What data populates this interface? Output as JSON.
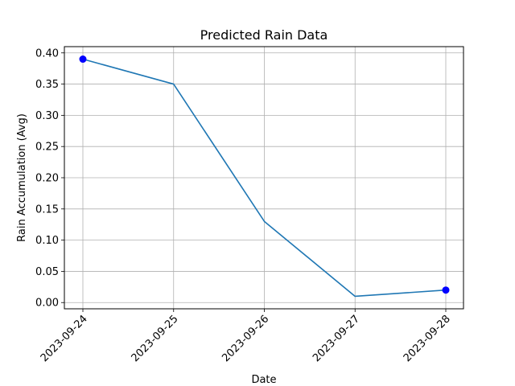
{
  "chart_data": {
    "type": "line",
    "title": "Predicted Rain Data",
    "xlabel": "Date",
    "ylabel": "Rain Accumulation (Avg)",
    "categories": [
      "2023-09-24",
      "2023-09-25",
      "2023-09-26",
      "2023-09-27",
      "2023-09-28"
    ],
    "series": [
      {
        "values": [
          0.39,
          0.35,
          0.13,
          0.01,
          0.02
        ],
        "color": "#1f77b4"
      }
    ],
    "highlighted_points": [
      {
        "x": "2023-09-24",
        "y": 0.39,
        "color": "#0000ff"
      },
      {
        "x": "2023-09-28",
        "y": 0.02,
        "color": "#0000ff"
      }
    ],
    "ylim": [
      -0.01,
      0.41
    ],
    "yticks": [
      "0.00",
      "0.05",
      "0.10",
      "0.15",
      "0.20",
      "0.25",
      "0.30",
      "0.35",
      "0.40"
    ],
    "grid": true,
    "x_tick_rotation": "45 degrees"
  }
}
